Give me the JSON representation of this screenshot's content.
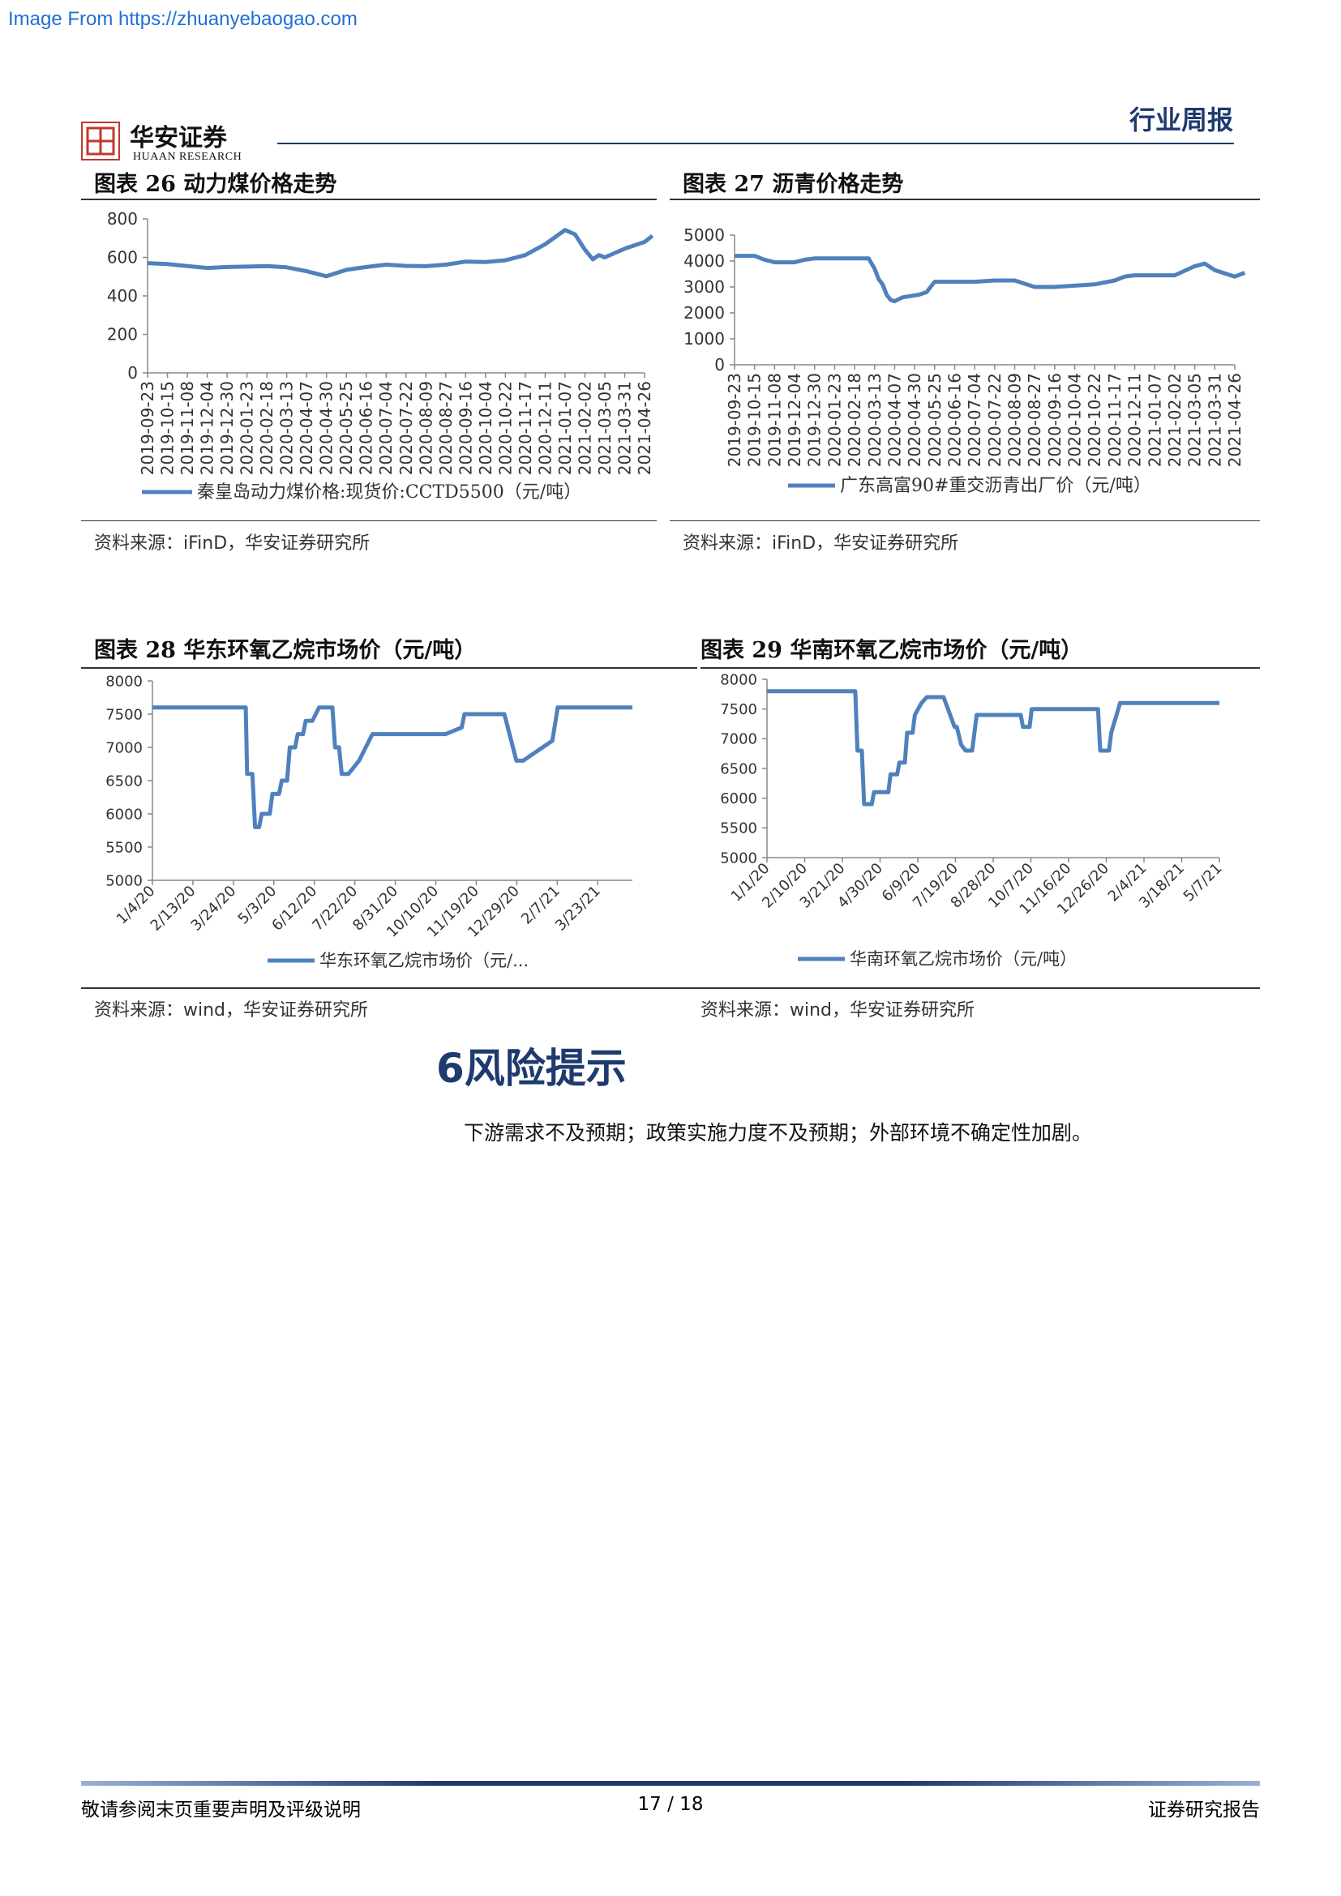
{
  "watermark": "Image From https://zhuanyebaogao.com",
  "header": {
    "logo_text": "华安证券",
    "logo_sub": "HUAAN RESEARCH",
    "report_type": "行业周报"
  },
  "charts": [
    {
      "title": "图表 26  动力煤价格走势",
      "source": "资料来源：iFinD，华安证券研究所"
    },
    {
      "title": "图表 27  沥青价格走势",
      "source": "资料来源：iFinD，华安证券研究所"
    },
    {
      "title": "图表 28  华东环氧乙烷市场价（元/吨）",
      "source": "资料来源：wind，华安证券研究所"
    },
    {
      "title": "图表 29  华南环氧乙烷市场价（元/吨）",
      "source": "资料来源：wind，华安证券研究所"
    }
  ],
  "section": {
    "title": "6风险提示",
    "text": "下游需求不及预期；政策实施力度不及预期；外部环境不确定性加剧。"
  },
  "footer": {
    "left": "敬请参阅末页重要声明及评级说明",
    "page": "17 / 18",
    "right": "证券研究报告"
  },
  "colors": {
    "line": "#4f81bd",
    "brand": "#1e3a6e"
  },
  "chart_data": [
    {
      "type": "line",
      "legend": "秦皇岛动力煤价格:现货价:CCTD5500（元/吨）",
      "ylim": [
        0,
        800
      ],
      "yticks": [
        0,
        200,
        400,
        600,
        800
      ],
      "xticks": [
        "2019-09-23",
        "2019-10-15",
        "2019-11-08",
        "2019-12-04",
        "2019-12-30",
        "2020-01-23",
        "2020-02-18",
        "2020-03-13",
        "2020-04-07",
        "2020-04-30",
        "2020-05-25",
        "2020-06-16",
        "2020-07-04",
        "2020-07-22",
        "2020-08-09",
        "2020-08-27",
        "2020-09-16",
        "2020-10-04",
        "2020-10-22",
        "2020-11-17",
        "2020-12-11",
        "2021-01-07",
        "2021-02-02",
        "2021-03-05",
        "2021-03-31",
        "2021-04-26"
      ],
      "x": [
        0,
        1,
        2,
        3,
        4,
        5,
        6,
        7,
        8,
        9,
        10,
        11,
        12,
        13,
        14,
        15,
        16,
        17,
        18,
        19,
        20,
        21,
        21.5,
        22,
        22.4,
        22.7,
        23,
        24,
        25,
        25.4
      ],
      "values": [
        570,
        565,
        555,
        545,
        550,
        552,
        555,
        548,
        528,
        502,
        535,
        550,
        562,
        556,
        554,
        562,
        578,
        576,
        585,
        612,
        668,
        742,
        720,
        640,
        590,
        612,
        600,
        645,
        680,
        712
      ]
    },
    {
      "type": "line",
      "legend": "广东高富90#重交沥青出厂价（元/吨）",
      "ylim": [
        0,
        5000
      ],
      "yticks": [
        0,
        1000,
        2000,
        3000,
        4000,
        5000
      ],
      "xticks": [
        "2019-09-23",
        "2019-10-15",
        "2019-11-08",
        "2019-12-04",
        "2019-12-30",
        "2020-01-23",
        "2020-02-18",
        "2020-03-13",
        "2020-04-07",
        "2020-04-30",
        "2020-05-25",
        "2020-06-16",
        "2020-07-04",
        "2020-07-22",
        "2020-08-09",
        "2020-08-27",
        "2020-09-16",
        "2020-10-04",
        "2020-10-22",
        "2020-11-17",
        "2020-12-11",
        "2021-01-07",
        "2021-02-02",
        "2021-03-05",
        "2021-03-31",
        "2021-04-26"
      ],
      "x": [
        0,
        1,
        1.5,
        2,
        3,
        3.5,
        4,
        5,
        6,
        6.7,
        7,
        7.2,
        7.4,
        7.6,
        7.8,
        8,
        8.4,
        8.8,
        9.2,
        9.6,
        10,
        11,
        12,
        13,
        14,
        15,
        16,
        17,
        18,
        19,
        19.5,
        20,
        21,
        22,
        23,
        23.5,
        24,
        25,
        25.5
      ],
      "values": [
        4200,
        4200,
        4050,
        3950,
        3950,
        4050,
        4100,
        4100,
        4100,
        4100,
        3700,
        3300,
        3100,
        2700,
        2500,
        2450,
        2600,
        2650,
        2700,
        2800,
        3200,
        3200,
        3200,
        3250,
        3250,
        3000,
        3000,
        3050,
        3100,
        3250,
        3400,
        3450,
        3450,
        3450,
        3800,
        3900,
        3650,
        3400,
        3550
      ]
    },
    {
      "type": "line",
      "legend": "华东环氧乙烷市场价（元/...",
      "ylim": [
        5000,
        8000
      ],
      "yticks": [
        5000,
        5500,
        6000,
        6500,
        7000,
        7500,
        8000
      ],
      "xticks": [
        "1/4/20",
        "2/13/20",
        "3/24/20",
        "5/3/20",
        "6/12/20",
        "7/22/20",
        "8/31/20",
        "10/10/20",
        "11/19/20",
        "12/29/20",
        "2/7/21",
        "3/23/21"
      ],
      "x": [
        0,
        70,
        71,
        75,
        77,
        80,
        82,
        88,
        90,
        95,
        97,
        101,
        103,
        107,
        109,
        113,
        115,
        120,
        125,
        127,
        135,
        137,
        140,
        142,
        145,
        147,
        155,
        165,
        180,
        185,
        190,
        220,
        232,
        234,
        240,
        244,
        250,
        255,
        264,
        273,
        278,
        300,
        304,
        315,
        320,
        330,
        340,
        350,
        360
      ],
      "values": [
        7600,
        7600,
        6600,
        6600,
        5800,
        5800,
        6000,
        6000,
        6300,
        6300,
        6500,
        6500,
        7000,
        7000,
        7200,
        7200,
        7400,
        7400,
        7600,
        7600,
        7600,
        7000,
        7000,
        6600,
        6600,
        6600,
        6800,
        7200,
        7200,
        7200,
        7200,
        7200,
        7300,
        7500,
        7500,
        7500,
        7500,
        7500,
        7500,
        6800,
        6800,
        7100,
        7600,
        7600,
        7600,
        7600,
        7600,
        7600,
        7600
      ]
    },
    {
      "type": "line",
      "legend": "华南环氧乙烷市场价（元/吨）",
      "ylim": [
        5000,
        8000
      ],
      "yticks": [
        5000,
        5500,
        6000,
        6500,
        7000,
        7500,
        8000
      ],
      "xticks": [
        "1/1/20",
        "2/10/20",
        "3/21/20",
        "4/30/20",
        "6/9/20",
        "7/19/20",
        "8/28/20",
        "10/7/20",
        "11/16/20",
        "12/26/20",
        "2/4/21",
        "3/18/21",
        "5/7/21"
      ],
      "x": [
        0,
        80,
        82,
        86,
        88,
        95,
        97,
        110,
        112,
        118,
        120,
        125,
        127,
        132,
        134,
        140,
        145,
        160,
        170,
        172,
        176,
        180,
        186,
        190,
        220,
        230,
        232,
        238,
        240,
        260,
        300,
        302,
        310,
        312,
        320,
        330,
        360,
        395,
        410
      ],
      "values": [
        7800,
        7800,
        6800,
        6800,
        5900,
        5900,
        6100,
        6100,
        6400,
        6400,
        6600,
        6600,
        7100,
        7100,
        7400,
        7600,
        7700,
        7700,
        7200,
        7200,
        6900,
        6800,
        6800,
        7400,
        7400,
        7400,
        7200,
        7200,
        7500,
        7500,
        7500,
        6800,
        6800,
        7100,
        7600,
        7600,
        7600,
        7600,
        7600
      ]
    }
  ]
}
